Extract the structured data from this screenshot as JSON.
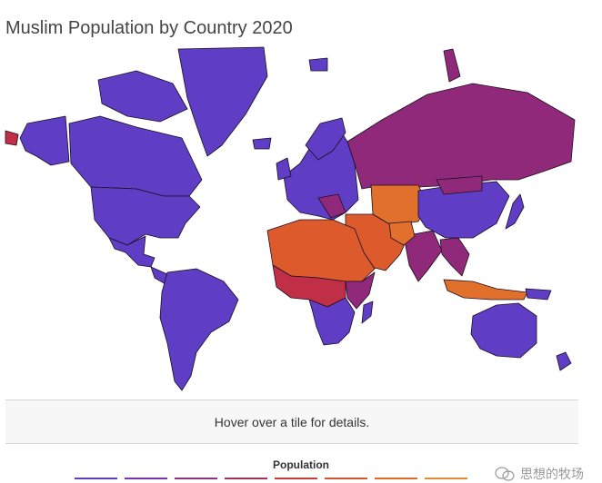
{
  "title": "Muslim Population by Country 2020",
  "info_text": "Hover over a tile for details.",
  "legend": {
    "title": "Population",
    "colors": [
      "#5f3dc4",
      "#7b34b0",
      "#93307f",
      "#a83054",
      "#c93a3a",
      "#d7532d",
      "#e06a2a",
      "#e58a34"
    ]
  },
  "watermark": {
    "text": "思想的牧场",
    "icon": "wechat-icon"
  },
  "colors": {
    "low": "#5f3dc4",
    "low_mid": "#7b36ad",
    "mid": "#91297a",
    "mid_high": "#c12f47",
    "high": "#dc5a2c",
    "very_high": "#e0702c",
    "border": "#1a1020"
  }
}
